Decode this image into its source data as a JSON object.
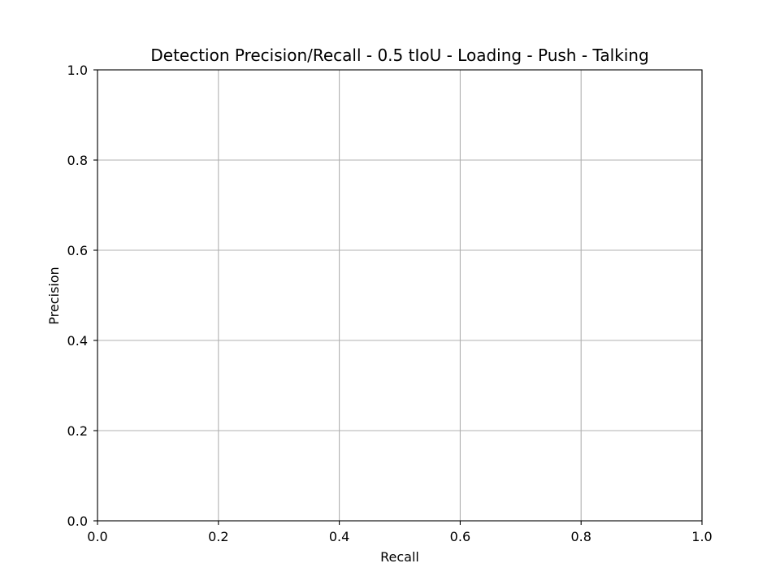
{
  "chart_data": {
    "type": "line",
    "title": "Detection Precision/Recall - 0.5 tIoU - Loading - Push - Talking",
    "xlabel": "Recall",
    "ylabel": "Precision",
    "xlim": [
      0.0,
      1.0
    ],
    "ylim": [
      0.0,
      1.0
    ],
    "xticks": [
      "0.0",
      "0.2",
      "0.4",
      "0.6",
      "0.8",
      "1.0"
    ],
    "yticks": [
      "0.0",
      "0.2",
      "0.4",
      "0.6",
      "0.8",
      "1.0"
    ],
    "grid": true,
    "series": []
  }
}
